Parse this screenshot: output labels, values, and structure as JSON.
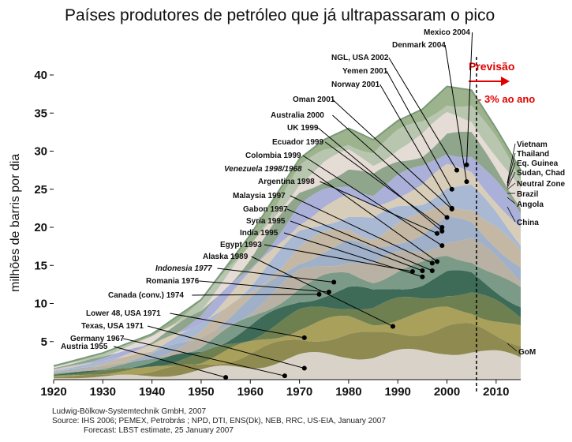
{
  "chart_data": {
    "type": "area",
    "title": "Países produtores de petróleo que já ultrapassaram o pico",
    "ylabel": "milhões de barris por dia",
    "xlim": [
      1920,
      2015
    ],
    "ylim": [
      0,
      40
    ],
    "x_ticks": [
      1920,
      1930,
      1940,
      1950,
      1960,
      1970,
      1980,
      1990,
      2000,
      2010
    ],
    "y_ticks": [
      5,
      10,
      15,
      20,
      25,
      30,
      35,
      40
    ],
    "forecast": {
      "label": "Previsão",
      "rate": "- 3% ao ano",
      "start_year": 2006,
      "color": "#e00000"
    },
    "x": [
      1920,
      1930,
      1940,
      1950,
      1960,
      1970,
      1975,
      1980,
      1985,
      1990,
      1995,
      2000,
      2005,
      2010,
      2015
    ],
    "total_envelope": [
      1.8,
      3.5,
      6.0,
      10.5,
      19.0,
      29.0,
      31.5,
      33.0,
      31.5,
      34.0,
      35.5,
      38.5,
      38.0,
      33.0,
      27.5
    ],
    "peak_annotations": [
      {
        "label": "Mexico 2004",
        "year": 2004,
        "y": 28.2
      },
      {
        "label": "Denmark 2004",
        "year": 2004,
        "y": 26.0
      },
      {
        "label": "NGL, USA 2002",
        "year": 2002,
        "y": 27.5
      },
      {
        "label": "Yemen 2001",
        "year": 2001,
        "y": 25.0
      },
      {
        "label": "Norway 2001",
        "year": 2001,
        "y": 22.5
      },
      {
        "label": "Oman 2001",
        "year": 2001,
        "y": 22.4
      },
      {
        "label": "Australia 2000",
        "year": 2000,
        "y": 21.3
      },
      {
        "label": "UK 1999",
        "year": 1999,
        "y": 19.5
      },
      {
        "label": "Ecuador 1999",
        "year": 1999,
        "y": 20.0
      },
      {
        "label": "Colombia 1999",
        "year": 1999,
        "y": 17.6
      },
      {
        "label": "Venezuela 1998/1968",
        "year": 1998,
        "y": 15.5,
        "italic": true
      },
      {
        "label": "Argentina 1998",
        "year": 1998,
        "y": 19.2
      },
      {
        "label": "Malaysia 1997",
        "year": 1997,
        "y": 15.3
      },
      {
        "label": "Gabon 1997",
        "year": 1997,
        "y": 14.3
      },
      {
        "label": "Syria 1995",
        "year": 1995,
        "y": 14.3
      },
      {
        "label": "India 1995",
        "year": 1995,
        "y": 13.5
      },
      {
        "label": "Egypt 1993",
        "year": 1993,
        "y": 14.2
      },
      {
        "label": "Alaska 1989",
        "year": 1989,
        "y": 7.0
      },
      {
        "label": "Indonesia 1977",
        "year": 1977,
        "y": 12.8,
        "italic": true
      },
      {
        "label": "Romania 1976",
        "year": 1976,
        "y": 11.5
      },
      {
        "label": "Canada (conv.) 1974",
        "year": 1974,
        "y": 11.2
      },
      {
        "label": "Lower 48, USA  1971",
        "year": 1971,
        "y": 5.5
      },
      {
        "label": "Texas, USA 1971",
        "year": 1971,
        "y": 1.5
      },
      {
        "label": "Germany 1967",
        "year": 1967,
        "y": 0.5
      },
      {
        "label": "Austria 1955",
        "year": 1955,
        "y": 0.3
      }
    ],
    "right_labels": [
      "Vietnam",
      "Thailand",
      "Eq. Guinea",
      "Sudan, Chad",
      "Neutral Zone",
      "Brazil",
      "Angola",
      "China",
      "GoM"
    ]
  },
  "footer": {
    "line1": "Ludwig-Bölkow-Systemtechnik GmbH, 2007",
    "line2": "Source: IHS 2006; PEMEX, Petrobrás ;  NPD, DTI, ENS(Dk), NEB, RRC, US-EIA, January 2007",
    "line3": "Forecast: LBST estimate, 25 January 2007"
  }
}
